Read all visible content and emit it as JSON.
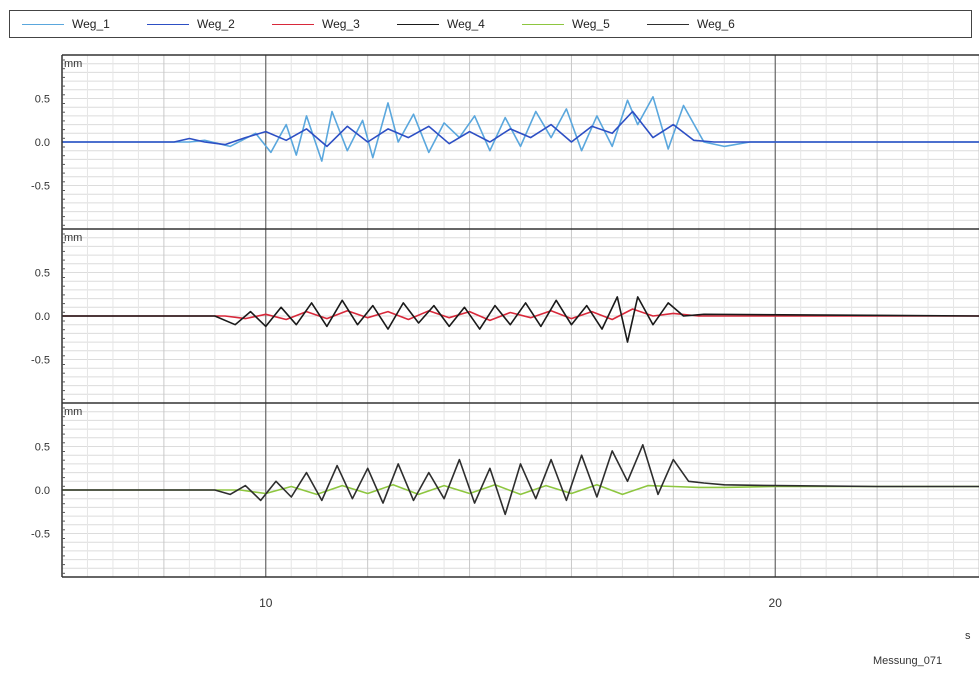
{
  "legend": [
    {
      "label": "Weg_1",
      "color": "#5aa7dd"
    },
    {
      "label": "Weg_2",
      "color": "#2d4fc4"
    },
    {
      "label": "Weg_3",
      "color": "#d8283a"
    },
    {
      "label": "Weg_4",
      "color": "#1a1a1a"
    },
    {
      "label": "Weg_5",
      "color": "#8dc63f"
    },
    {
      "label": "Weg_6",
      "color": "#2e2e2e"
    }
  ],
  "x_unit": "s",
  "footer": "Messung_071",
  "chart_data": [
    {
      "type": "line",
      "ylabel": "mm",
      "ylim": [
        -1.0,
        1.0
      ],
      "yticks": [
        0.5,
        0.0,
        -0.5
      ],
      "yticklabels": [
        "0.5",
        "0.0",
        "-0.5"
      ],
      "xlim": [
        6.0,
        24.0
      ],
      "xticks": [
        10,
        20
      ],
      "xticklabels": [
        "10",
        "20"
      ],
      "grid": true,
      "series": [
        {
          "name": "Weg_1",
          "color": "#5aa7dd",
          "x": [
            6.0,
            8.5,
            8.8,
            9.3,
            9.8,
            10.1,
            10.4,
            10.6,
            10.8,
            11.1,
            11.3,
            11.6,
            11.9,
            12.1,
            12.4,
            12.6,
            12.9,
            13.2,
            13.5,
            13.8,
            14.1,
            14.4,
            14.7,
            15.0,
            15.3,
            15.6,
            15.9,
            16.2,
            16.5,
            16.8,
            17.1,
            17.3,
            17.6,
            17.9,
            18.2,
            18.6,
            19.0,
            19.5,
            24.0
          ],
          "y": [
            0.0,
            0.0,
            0.02,
            -0.05,
            0.1,
            -0.12,
            0.2,
            -0.15,
            0.3,
            -0.22,
            0.35,
            -0.1,
            0.25,
            -0.18,
            0.45,
            0.0,
            0.32,
            -0.12,
            0.22,
            0.05,
            0.3,
            -0.1,
            0.28,
            -0.05,
            0.35,
            0.05,
            0.38,
            -0.1,
            0.3,
            -0.05,
            0.48,
            0.2,
            0.52,
            -0.08,
            0.42,
            0.0,
            -0.05,
            0.0,
            0.0
          ]
        },
        {
          "name": "Weg_2",
          "color": "#2d4fc4",
          "x": [
            6.0,
            8.2,
            8.5,
            8.8,
            9.2,
            9.6,
            10.0,
            10.4,
            10.8,
            11.2,
            11.6,
            12.0,
            12.4,
            12.8,
            13.2,
            13.6,
            14.0,
            14.4,
            14.8,
            15.2,
            15.6,
            16.0,
            16.4,
            16.8,
            17.2,
            17.6,
            18.0,
            18.4,
            18.8,
            19.2,
            24.0
          ],
          "y": [
            0.0,
            0.0,
            0.04,
            0.0,
            -0.03,
            0.05,
            0.12,
            0.02,
            0.15,
            -0.05,
            0.18,
            0.0,
            0.15,
            0.05,
            0.18,
            -0.02,
            0.12,
            0.0,
            0.15,
            0.05,
            0.2,
            0.0,
            0.18,
            0.1,
            0.35,
            0.05,
            0.2,
            0.02,
            0.0,
            0.0,
            0.0
          ]
        },
        {
          "name": "Weg_3",
          "color": "#d8283a",
          "x": [
            6.0,
            9.2,
            9.6,
            10.0,
            10.4,
            10.8,
            11.2,
            11.6,
            12.0,
            12.4,
            12.8,
            13.2,
            13.6,
            14.0,
            14.4,
            14.8,
            15.2,
            15.6,
            16.0,
            16.4,
            16.8,
            17.2,
            17.6,
            18.0,
            18.5,
            24.0
          ],
          "y": [
            0.0,
            0.0,
            -0.03,
            0.02,
            -0.04,
            0.05,
            -0.03,
            0.06,
            -0.02,
            0.05,
            -0.04,
            0.06,
            -0.02,
            0.05,
            -0.05,
            0.04,
            -0.02,
            0.06,
            -0.03,
            0.05,
            -0.04,
            0.08,
            0.0,
            0.03,
            0.0,
            0.0
          ]
        },
        {
          "name": "Weg_4",
          "color": "#1a1a1a",
          "x": [
            6.0,
            9.0,
            9.4,
            9.7,
            10.0,
            10.3,
            10.6,
            10.9,
            11.2,
            11.5,
            11.8,
            12.1,
            12.4,
            12.7,
            13.0,
            13.3,
            13.6,
            13.9,
            14.2,
            14.5,
            14.8,
            15.1,
            15.4,
            15.7,
            16.0,
            16.3,
            16.6,
            16.9,
            17.1,
            17.3,
            17.6,
            17.9,
            18.2,
            18.6,
            24.0
          ],
          "y": [
            0.0,
            0.0,
            -0.1,
            0.05,
            -0.12,
            0.1,
            -0.1,
            0.15,
            -0.12,
            0.18,
            -0.1,
            0.12,
            -0.15,
            0.15,
            -0.08,
            0.12,
            -0.12,
            0.1,
            -0.15,
            0.12,
            -0.1,
            0.15,
            -0.12,
            0.18,
            -0.1,
            0.12,
            -0.15,
            0.22,
            -0.3,
            0.22,
            -0.1,
            0.15,
            0.0,
            0.02,
            0.0
          ]
        },
        {
          "name": "Weg_5",
          "color": "#8dc63f",
          "x": [
            6.0,
            9.5,
            10.0,
            10.5,
            11.0,
            11.5,
            12.0,
            12.5,
            13.0,
            13.5,
            14.0,
            14.5,
            15.0,
            15.5,
            16.0,
            16.5,
            17.0,
            17.5,
            18.0,
            18.5,
            19.0,
            20.0,
            24.0
          ],
          "y": [
            0.0,
            0.0,
            -0.04,
            0.04,
            -0.05,
            0.05,
            -0.04,
            0.06,
            -0.05,
            0.05,
            -0.04,
            0.06,
            -0.05,
            0.05,
            -0.04,
            0.06,
            -0.05,
            0.05,
            0.04,
            0.03,
            0.03,
            0.04,
            0.04
          ]
        },
        {
          "name": "Weg_6",
          "color": "#2e2e2e",
          "x": [
            6.0,
            9.0,
            9.3,
            9.6,
            9.9,
            10.2,
            10.5,
            10.8,
            11.1,
            11.4,
            11.7,
            12.0,
            12.3,
            12.6,
            12.9,
            13.2,
            13.5,
            13.8,
            14.1,
            14.4,
            14.7,
            15.0,
            15.3,
            15.6,
            15.9,
            16.2,
            16.5,
            16.8,
            17.1,
            17.4,
            17.7,
            18.0,
            18.3,
            18.6,
            19.0,
            20.0,
            22.0,
            24.0
          ],
          "y": [
            0.0,
            0.0,
            -0.05,
            0.05,
            -0.12,
            0.1,
            -0.08,
            0.2,
            -0.12,
            0.28,
            -0.1,
            0.25,
            -0.15,
            0.3,
            -0.12,
            0.2,
            -0.1,
            0.35,
            -0.15,
            0.25,
            -0.28,
            0.3,
            -0.1,
            0.35,
            -0.12,
            0.4,
            -0.08,
            0.45,
            0.1,
            0.52,
            -0.05,
            0.35,
            0.1,
            0.08,
            0.06,
            0.05,
            0.04,
            0.04
          ]
        }
      ]
    },
    {
      "type": "line",
      "ylabel": "mm",
      "ylim": [
        -1.0,
        1.0
      ],
      "yticks": [
        0.5,
        0.0,
        -0.5
      ],
      "yticklabels": [
        "0.5",
        "0.0",
        "-0.5"
      ],
      "xlim": [
        6.0,
        24.0
      ],
      "grid": true
    },
    {
      "type": "line",
      "ylabel": "mm",
      "ylim": [
        -1.0,
        1.0
      ],
      "yticks": [
        0.5,
        0.0,
        -0.5
      ],
      "yticklabels": [
        "0.5",
        "0.0",
        "-0.5"
      ],
      "xlim": [
        6.0,
        24.0
      ],
      "grid": true
    }
  ]
}
